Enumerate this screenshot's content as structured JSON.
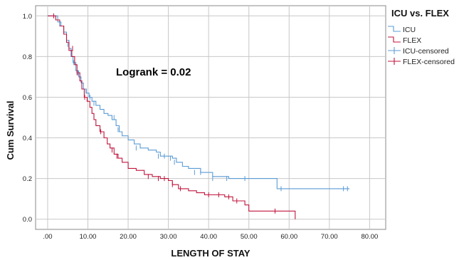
{
  "chart_data": {
    "type": "line",
    "subtype": "kaplan-meier",
    "ylabel": "Cum Survival",
    "xlabel": "LENGTH OF STAY",
    "xlim": [
      -3,
      84
    ],
    "ylim": [
      -0.05,
      1.05
    ],
    "x_ticks": [
      0,
      10,
      20,
      30,
      40,
      50,
      60,
      70,
      80
    ],
    "x_tick_labels": [
      ".00",
      "10.00",
      "20.00",
      "30.00",
      "40.00",
      "50.00",
      "60.00",
      "70.00",
      "80.00"
    ],
    "y_ticks": [
      0,
      0.2,
      0.4,
      0.6,
      0.8,
      1.0
    ],
    "y_tick_labels": [
      "0.0",
      "0.2",
      "0.4",
      "0.6",
      "0.8",
      "1.0"
    ],
    "grid": true,
    "annotation": "Logrank = 0.02",
    "legend": {
      "title": "ICU vs. FLEX",
      "placement": "right",
      "entries": [
        "ICU",
        "FLEX",
        "ICU-censored",
        "FLEX-censored"
      ]
    },
    "series": [
      {
        "name": "ICU",
        "color": "#5b9bd5",
        "steps": [
          [
            0,
            1.0
          ],
          [
            1.0,
            1.0
          ],
          [
            2.5,
            0.97
          ],
          [
            3.3,
            0.95
          ],
          [
            4.0,
            0.92
          ],
          [
            4.7,
            0.88
          ],
          [
            5.3,
            0.84
          ],
          [
            5.8,
            0.8
          ],
          [
            6.3,
            0.77
          ],
          [
            7.0,
            0.73
          ],
          [
            7.7,
            0.7
          ],
          [
            8.3,
            0.67
          ],
          [
            8.9,
            0.64
          ],
          [
            9.6,
            0.62
          ],
          [
            10.3,
            0.6
          ],
          [
            11.0,
            0.58
          ],
          [
            12.0,
            0.56
          ],
          [
            13.0,
            0.54
          ],
          [
            14.0,
            0.52
          ],
          [
            15.0,
            0.51
          ],
          [
            16.0,
            0.49
          ],
          [
            17.0,
            0.46
          ],
          [
            17.8,
            0.43
          ],
          [
            18.5,
            0.41
          ],
          [
            20.0,
            0.39
          ],
          [
            21.5,
            0.37
          ],
          [
            23.0,
            0.35
          ],
          [
            25.0,
            0.34
          ],
          [
            27.0,
            0.33
          ],
          [
            28.0,
            0.31
          ],
          [
            31.0,
            0.3
          ],
          [
            32.0,
            0.28
          ],
          [
            33.5,
            0.26
          ],
          [
            35.0,
            0.25
          ],
          [
            38.0,
            0.23
          ],
          [
            41.0,
            0.21
          ],
          [
            45.0,
            0.2
          ],
          [
            57.0,
            0.15
          ],
          [
            75.0,
            0.15
          ]
        ],
        "censored": [
          [
            3.0,
            0.96
          ],
          [
            5.0,
            0.86
          ],
          [
            6.5,
            0.77
          ],
          [
            7.5,
            0.72
          ],
          [
            9.5,
            0.63
          ],
          [
            10.5,
            0.6
          ],
          [
            11.5,
            0.57
          ],
          [
            16.5,
            0.5
          ],
          [
            17.5,
            0.44
          ],
          [
            22.0,
            0.35
          ],
          [
            27.5,
            0.31
          ],
          [
            29.0,
            0.31
          ],
          [
            30.5,
            0.3
          ],
          [
            31.5,
            0.28
          ],
          [
            36.5,
            0.23
          ],
          [
            38.0,
            0.23
          ],
          [
            41.0,
            0.2
          ],
          [
            44.5,
            0.2
          ],
          [
            49.0,
            0.2
          ],
          [
            58.0,
            0.15
          ],
          [
            73.5,
            0.15
          ],
          [
            74.5,
            0.15
          ]
        ]
      },
      {
        "name": "FLEX",
        "color": "#c0143c",
        "steps": [
          [
            0,
            1.0
          ],
          [
            1.2,
            1.0
          ],
          [
            2.0,
            0.98
          ],
          [
            3.0,
            0.95
          ],
          [
            4.0,
            0.91
          ],
          [
            4.7,
            0.87
          ],
          [
            5.3,
            0.83
          ],
          [
            6.0,
            0.8
          ],
          [
            6.7,
            0.76
          ],
          [
            7.3,
            0.72
          ],
          [
            8.0,
            0.68
          ],
          [
            8.5,
            0.64
          ],
          [
            9.1,
            0.6
          ],
          [
            9.8,
            0.58
          ],
          [
            10.5,
            0.55
          ],
          [
            11.0,
            0.52
          ],
          [
            11.5,
            0.49
          ],
          [
            12.0,
            0.46
          ],
          [
            13.0,
            0.43
          ],
          [
            14.0,
            0.4
          ],
          [
            14.8,
            0.37
          ],
          [
            15.5,
            0.35
          ],
          [
            16.5,
            0.32
          ],
          [
            17.5,
            0.3
          ],
          [
            18.5,
            0.28
          ],
          [
            20.0,
            0.25
          ],
          [
            22.0,
            0.24
          ],
          [
            24.0,
            0.22
          ],
          [
            26.0,
            0.21
          ],
          [
            28.0,
            0.2
          ],
          [
            30.0,
            0.19
          ],
          [
            31.0,
            0.17
          ],
          [
            32.5,
            0.15
          ],
          [
            35.0,
            0.14
          ],
          [
            37.0,
            0.13
          ],
          [
            39.0,
            0.12
          ],
          [
            44.0,
            0.11
          ],
          [
            46.0,
            0.09
          ],
          [
            49.0,
            0.07
          ],
          [
            50.0,
            0.04
          ],
          [
            61.5,
            0.04
          ],
          [
            61.5,
            0.0
          ]
        ],
        "censored": [
          [
            1.5,
            1.0
          ],
          [
            6.2,
            0.84
          ],
          [
            7.3,
            0.72
          ],
          [
            9.2,
            0.6
          ],
          [
            13.2,
            0.43
          ],
          [
            16.0,
            0.34
          ],
          [
            17.2,
            0.31
          ],
          [
            25.0,
            0.21
          ],
          [
            27.5,
            0.2
          ],
          [
            29.0,
            0.2
          ],
          [
            31.0,
            0.17
          ],
          [
            33.0,
            0.15
          ],
          [
            40.0,
            0.12
          ],
          [
            42.5,
            0.12
          ],
          [
            45.0,
            0.11
          ],
          [
            47.0,
            0.09
          ],
          [
            56.5,
            0.04
          ]
        ]
      }
    ]
  }
}
